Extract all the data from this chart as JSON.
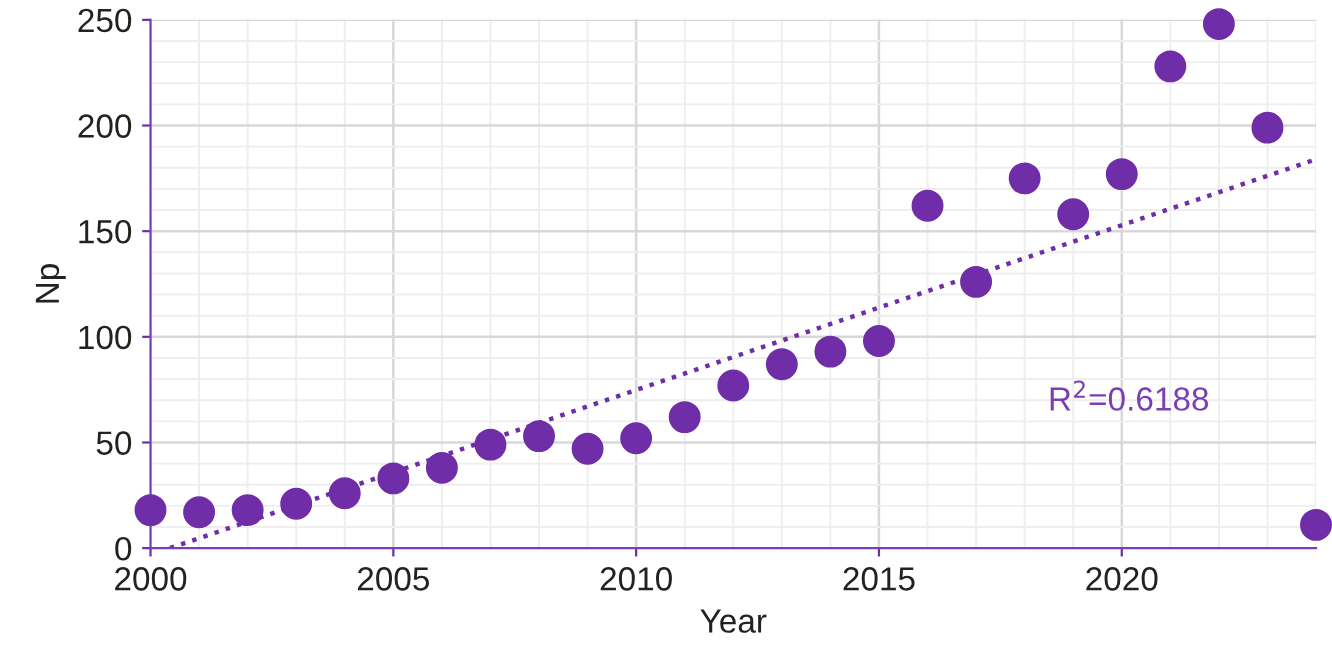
{
  "chart_data": {
    "type": "scatter",
    "xlabel": "Year",
    "ylabel": "Np",
    "xlim": [
      2000,
      2024
    ],
    "xticks": [
      2000,
      2005,
      2010,
      2015,
      2020
    ],
    "ylim": [
      0,
      250
    ],
    "yticks": [
      0,
      50,
      100,
      150,
      200,
      250
    ],
    "grid": true,
    "series": [
      {
        "marker": "circle",
        "color": "#6f2da8",
        "x": [
          2000,
          2001,
          2002,
          2003,
          2004,
          2005,
          2006,
          2007,
          2008,
          2009,
          2010,
          2011,
          2012,
          2013,
          2014,
          2015,
          2016,
          2017,
          2018,
          2019,
          2020,
          2021,
          2022,
          2023,
          2024
        ],
        "values": [
          18,
          17,
          18,
          21,
          26,
          33,
          38,
          49,
          53,
          47,
          52,
          62,
          77,
          87,
          93,
          98,
          162,
          126,
          175,
          158,
          177,
          228,
          248,
          199,
          11
        ]
      },
      {
        "type": "line",
        "color": "#6f2da8",
        "line_style": "dotted",
        "x": [
          2000.4,
          2024
        ],
        "values": [
          0,
          184
        ]
      }
    ],
    "annotations": [
      "R$^{2}$=0.6188"
    ]
  }
}
